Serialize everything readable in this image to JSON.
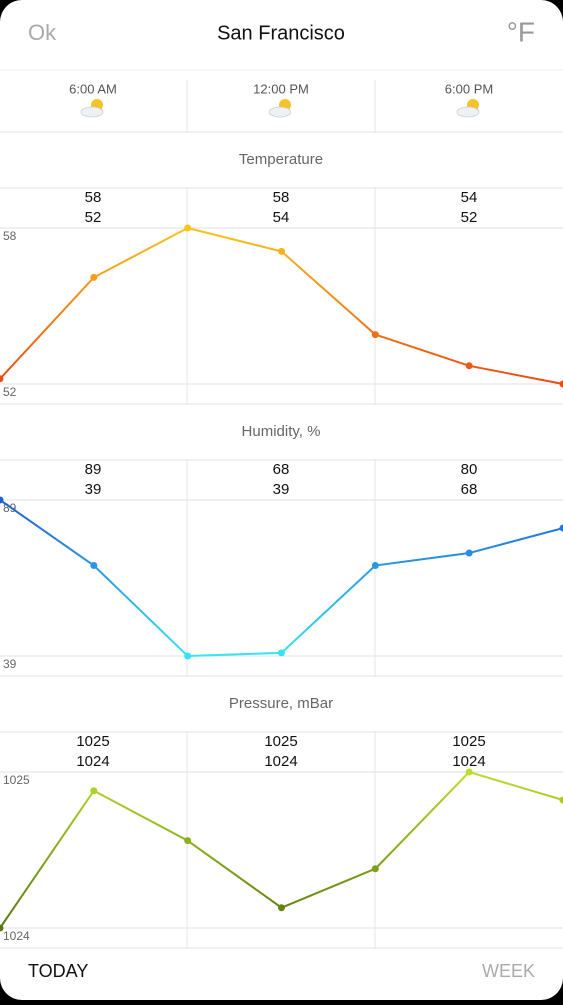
{
  "header": {
    "left": "Ok",
    "title": "San Francisco",
    "right": "°F"
  },
  "times": [
    "6:00 AM",
    "12:00 PM",
    "6:00 PM"
  ],
  "chart_data": [
    {
      "type": "line",
      "title": "Temperature",
      "columns": {
        "max": [
          58,
          58,
          54
        ],
        "min": [
          52,
          54,
          52
        ]
      },
      "values": [
        52.2,
        56.1,
        58,
        57.1,
        53.9,
        52.7,
        52
      ],
      "ylim": [
        52,
        58
      ],
      "yticks": [
        52,
        58
      ],
      "colors": {
        "high": "#f7c51e",
        "low": "#ea4a14"
      }
    },
    {
      "type": "line",
      "title": "Humidity, %",
      "columns": {
        "max": [
          89,
          68,
          80
        ],
        "min": [
          39,
          39,
          68
        ]
      },
      "values": [
        89,
        68,
        39,
        40,
        68,
        72,
        80
      ],
      "ylim": [
        39,
        89
      ],
      "yticks": [
        39,
        89
      ],
      "colors": {
        "high": "#1f5fd4",
        "low": "#38e3f6"
      }
    },
    {
      "type": "line",
      "title": "Pressure, mBar",
      "columns": {
        "max": [
          1025,
          1025,
          1025
        ],
        "min": [
          1024,
          1024,
          1024
        ]
      },
      "values": [
        1024,
        1024.88,
        1024.56,
        1024.13,
        1024.38,
        1025,
        1024.82
      ],
      "ylim": [
        1024,
        1025
      ],
      "yticks": [
        1024,
        1025
      ],
      "colors": {
        "high": "#b9de2c",
        "low": "#58780e"
      }
    }
  ],
  "footer": {
    "left": "TODAY",
    "right": "WEEK"
  }
}
